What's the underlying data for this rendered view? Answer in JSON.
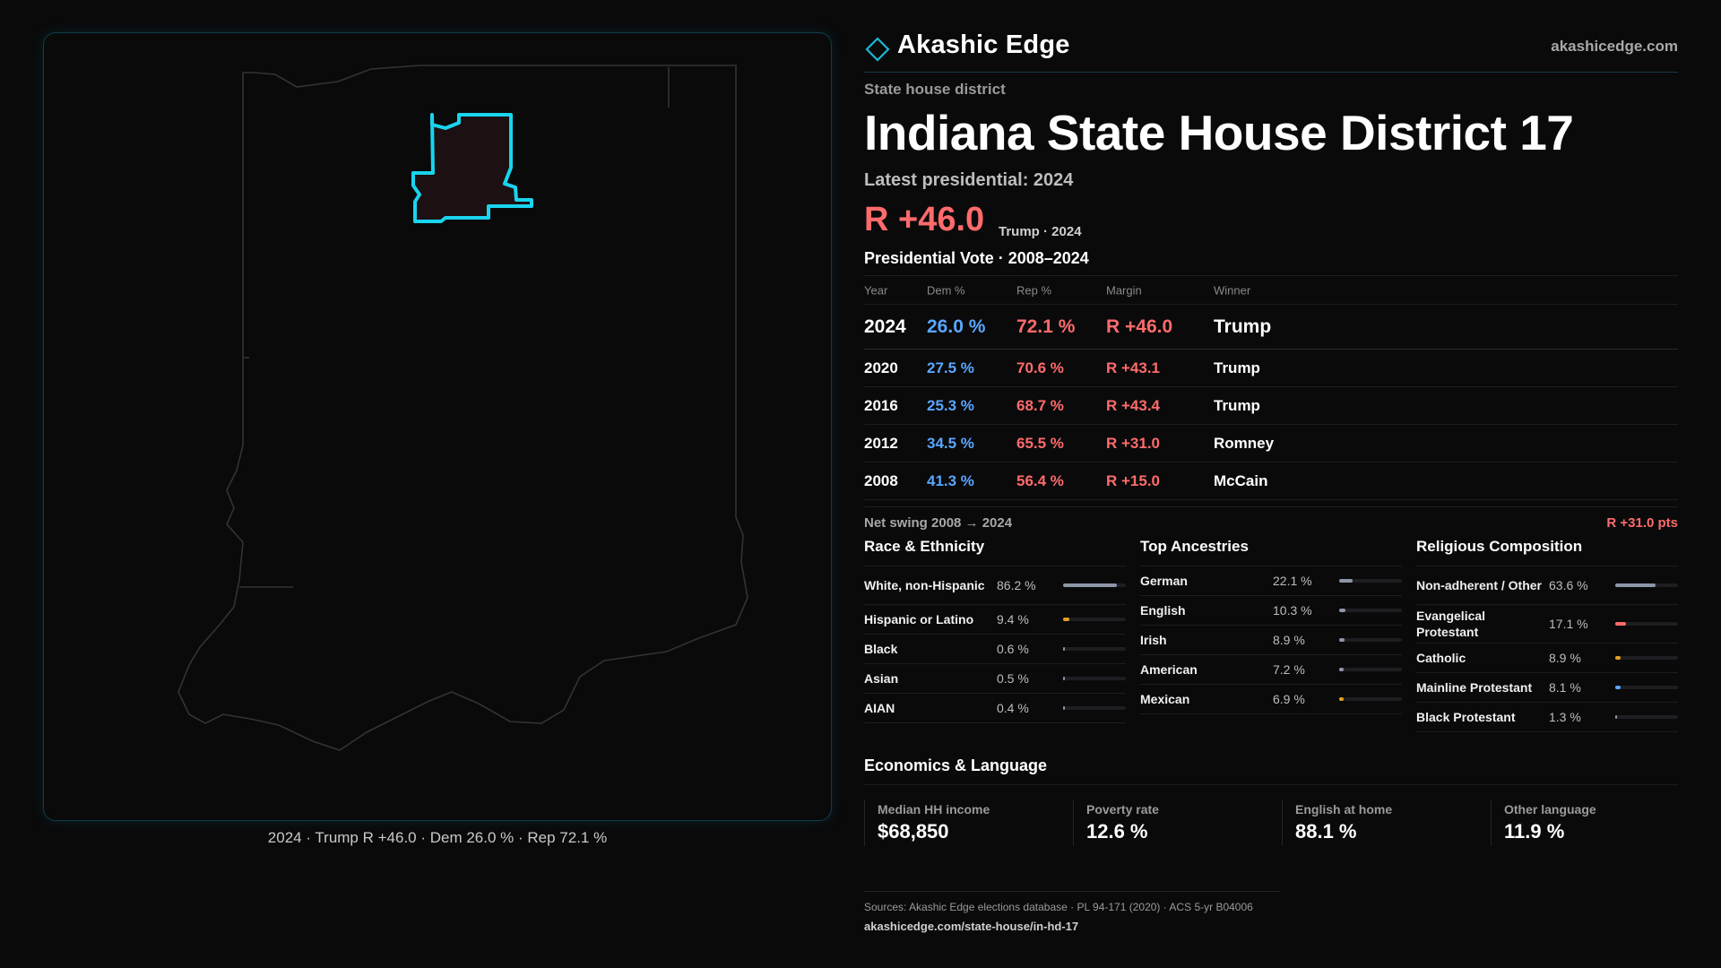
{
  "map": {
    "caption": "2024 · Trump R +46.0 · Dem 26.0 % · Rep 72.1 %",
    "state_outline_color": "#3a3a3e",
    "district_outline_color": "#19d4ee",
    "district_fill_color": "#1d1012"
  },
  "header": {
    "brand": "Akashic Edge",
    "site": "akashicedge.com",
    "logo_icon": "diamond-icon"
  },
  "district": {
    "kicker": "State house district",
    "title": "Indiana State House District 17",
    "latest": "Latest presidential: 2024",
    "margin": "R +46.0",
    "margin_sub": "Trump · 2024"
  },
  "votes": {
    "title": "Presidential Vote · 2008–2024",
    "columns": [
      "Year",
      "Dem %",
      "Rep %",
      "Margin",
      "Winner"
    ],
    "rows": [
      {
        "year": "2024",
        "dem": "26.0 %",
        "rep": "72.1 %",
        "margin": "R +46.0",
        "winner": "Trump"
      },
      {
        "year": "2020",
        "dem": "27.5 %",
        "rep": "70.6 %",
        "margin": "R +43.1",
        "winner": "Trump"
      },
      {
        "year": "2016",
        "dem": "25.3 %",
        "rep": "68.7 %",
        "margin": "R +43.4",
        "winner": "Trump"
      },
      {
        "year": "2012",
        "dem": "34.5 %",
        "rep": "65.5 %",
        "margin": "R +31.0",
        "winner": "Romney"
      },
      {
        "year": "2008",
        "dem": "41.3 %",
        "rep": "56.4 %",
        "margin": "R +15.0",
        "winner": "McCain"
      }
    ]
  },
  "swing": {
    "label": "Net swing 2008 → 2024",
    "value": "R +31.0 pts"
  },
  "race": {
    "title": "Race & Ethnicity",
    "items": [
      {
        "label": "White, non-Hispanic",
        "value": "86.2 %",
        "pct": 86.2,
        "color": "#8e96a8"
      },
      {
        "label": "Hispanic or Latino",
        "value": "9.4 %",
        "pct": 9.4,
        "color": "#e0a020"
      },
      {
        "label": "Black",
        "value": "0.6 %",
        "pct": 0.6,
        "color": "#8e96a8"
      },
      {
        "label": "Asian",
        "value": "0.5 %",
        "pct": 0.5,
        "color": "#8e96a8"
      },
      {
        "label": "AIAN",
        "value": "0.4 %",
        "pct": 0.4,
        "color": "#8e96a8"
      }
    ]
  },
  "ancestry": {
    "title": "Top Ancestries",
    "items": [
      {
        "label": "German",
        "value": "22.1 %",
        "pct": 22.1,
        "color": "#8e96a8"
      },
      {
        "label": "English",
        "value": "10.3 %",
        "pct": 10.3,
        "color": "#8e96a8"
      },
      {
        "label": "Irish",
        "value": "8.9 %",
        "pct": 8.9,
        "color": "#8e96a8"
      },
      {
        "label": "American",
        "value": "7.2 %",
        "pct": 7.2,
        "color": "#8e96a8"
      },
      {
        "label": "Mexican",
        "value": "6.9 %",
        "pct": 6.9,
        "color": "#e0a020"
      }
    ]
  },
  "religion": {
    "title": "Religious Composition",
    "items": [
      {
        "label": "Non-adherent / Other",
        "value": "63.6 %",
        "pct": 63.6,
        "color": "#8e96a8"
      },
      {
        "label": "Evangelical Protestant",
        "value": "17.1 %",
        "pct": 17.1,
        "color": "#ff6b6b"
      },
      {
        "label": "Catholic",
        "value": "8.9 %",
        "pct": 8.9,
        "color": "#e0a020"
      },
      {
        "label": "Mainline Protestant",
        "value": "8.1 %",
        "pct": 8.1,
        "color": "#5aa6ff"
      },
      {
        "label": "Black Protestant",
        "value": "1.3 %",
        "pct": 1.3,
        "color": "#8e96a8"
      }
    ]
  },
  "economics": {
    "title": "Economics & Language",
    "items": [
      {
        "label": "Median HH income",
        "value": "$68,850"
      },
      {
        "label": "Poverty rate",
        "value": "12.6 %"
      },
      {
        "label": "English at home",
        "value": "88.1 %"
      },
      {
        "label": "Other language",
        "value": "11.9 %"
      }
    ]
  },
  "sources": {
    "text": "Sources: Akashic Edge elections database · PL 94-171 (2020) · ACS 5-yr B04006",
    "url": "akashicedge.com/state-house/in-hd-17"
  }
}
